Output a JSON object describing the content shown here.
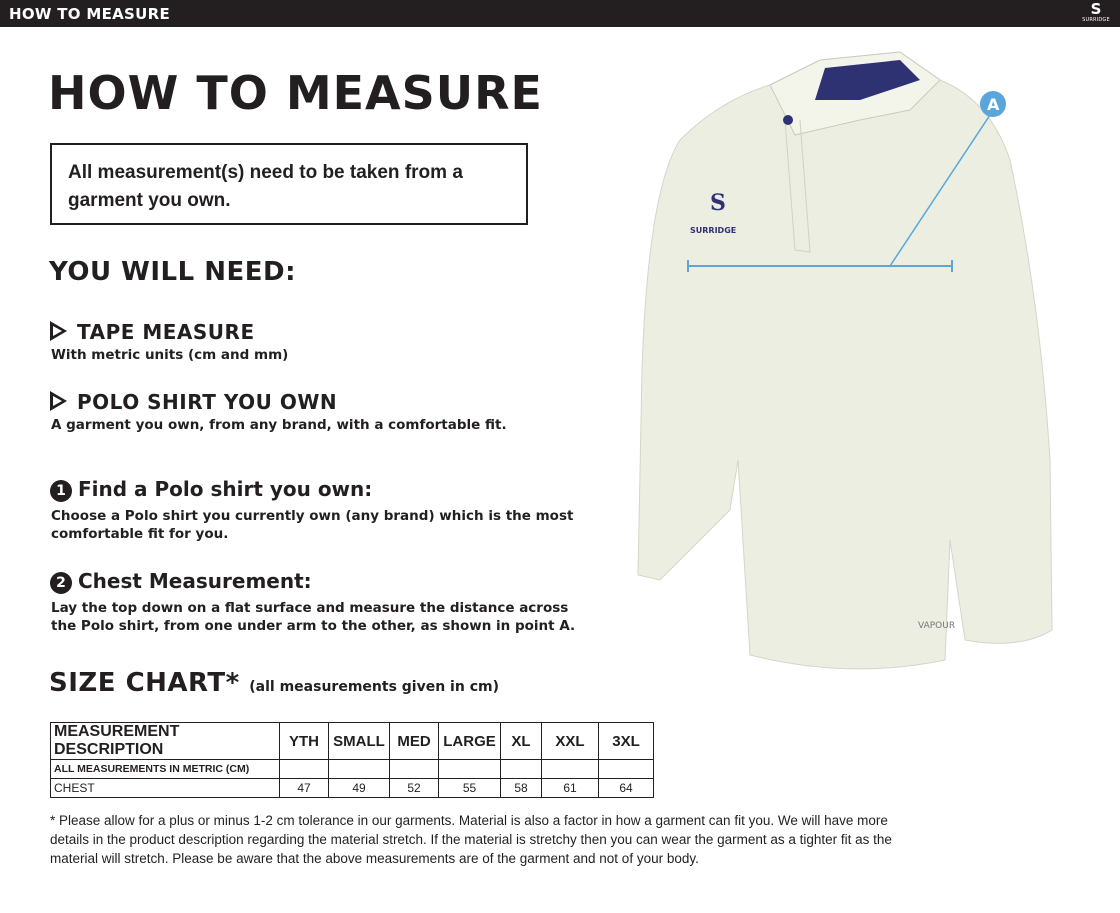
{
  "header": {
    "title": "HOW TO MEASURE",
    "brand": "SURRIDGE",
    "brand_mark": "S"
  },
  "title": "HOW TO MEASURE",
  "note": "All measurement(s) need to be taken from a garment you own.",
  "need_heading": "YOU WILL NEED:",
  "needs": [
    {
      "title": "TAPE MEASURE",
      "desc": "With metric units (cm and mm)"
    },
    {
      "title": "POLO SHIRT YOU OWN",
      "desc": "A garment you own, from any brand, with a comfortable fit."
    }
  ],
  "steps": [
    {
      "num": "1",
      "title": "Find a Polo shirt you own:",
      "desc": "Choose a Polo shirt you currently own (any brand) which is the most comfortable fit for you."
    },
    {
      "num": "2",
      "title": "Chest Measurement:",
      "desc": "Lay the top down on a flat surface and measure the distance across the Polo shirt, from one under arm to the other, as shown in point A."
    }
  ],
  "size_chart": {
    "title": "SIZE CHART*",
    "subtitle": "(all measurements given in cm)",
    "headers": [
      "MEASUREMENT DESCRIPTION",
      "YTH",
      "SMALL",
      "MED",
      "LARGE",
      "XL",
      "XXL",
      "3XL"
    ],
    "metric_row": "ALL MEASUREMENTS IN METRIC (CM)",
    "chest_label": "CHEST",
    "chest": [
      "47",
      "49",
      "52",
      "55",
      "58",
      "61",
      "64"
    ]
  },
  "footnote": "* Please allow for a plus or minus 1-2 cm tolerance in our garments. Material is also a factor in how a garment can fit you. We will have more details in the product description regarding the material stretch.  If the material is stretchy then you can wear the garment as a tighter fit as the material will stretch.  Please be aware that the above measurements are of the garment and not of your body.",
  "image": {
    "point_label": "A",
    "shirt_logo": "SURRIDGE",
    "sleeve_text": "VAPOUR",
    "colors": {
      "shirt": "#eceee2",
      "collar_trim": "#2f3272",
      "measure_line": "#5aa6dc"
    }
  }
}
